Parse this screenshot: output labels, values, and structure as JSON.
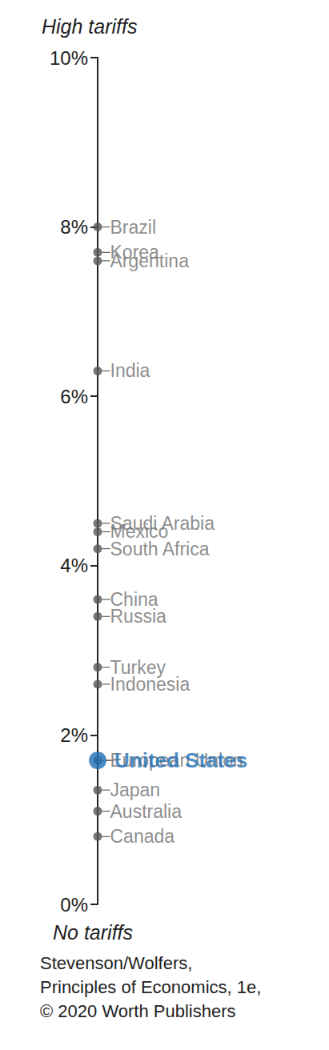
{
  "chart_data": {
    "type": "scatter",
    "top_label": "High tariffs",
    "bottom_label": "No tariffs",
    "source": [
      "Stevenson/Wolfers,",
      "Principles of Economics, 1e,",
      "© 2020 Worth Publishers"
    ],
    "categories": [
      "Brazil",
      "Korea",
      "Argentina",
      "India",
      "Saudi Arabia",
      "Mexico",
      "South Africa",
      "China",
      "Russia",
      "Turkey",
      "Indonesia",
      "European Union",
      "United States",
      "Japan",
      "Australia",
      "Canada"
    ],
    "values": [
      8.0,
      7.7,
      7.6,
      6.3,
      4.5,
      4.4,
      4.2,
      3.6,
      3.4,
      2.8,
      2.6,
      1.7,
      1.7,
      1.35,
      1.1,
      0.8
    ],
    "colors": [
      "#555555",
      "#555555",
      "#555555",
      "#555555",
      "#555555",
      "#555555",
      "#555555",
      "#555555",
      "#555555",
      "#555555",
      "#555555",
      "#555555",
      "#1f6fb5",
      "#555555",
      "#555555",
      "#555555"
    ],
    "ylim": [
      0,
      10
    ],
    "yticks": [
      {
        "value": 0,
        "label": "0%"
      },
      {
        "value": 2,
        "label": "2%"
      },
      {
        "value": 4,
        "label": "4%"
      },
      {
        "value": 6,
        "label": "6%"
      },
      {
        "value": 8,
        "label": "8%"
      },
      {
        "value": 10,
        "label": "10%"
      }
    ],
    "grid": false,
    "data_labels": true
  }
}
